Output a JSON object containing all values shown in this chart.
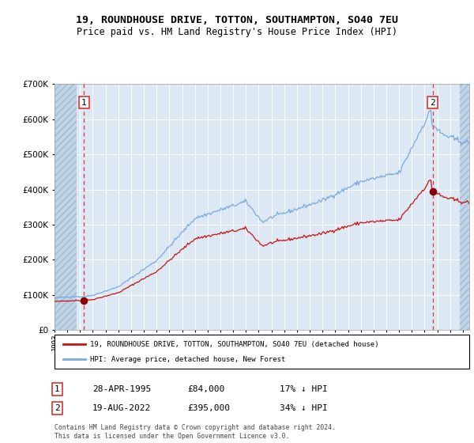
{
  "title1": "19, ROUNDHOUSE DRIVE, TOTTON, SOUTHAMPTON, SO40 7EU",
  "title2": "Price paid vs. HM Land Registry's House Price Index (HPI)",
  "legend1": "19, ROUNDHOUSE DRIVE, TOTTON, SOUTHAMPTON, SO40 7EU (detached house)",
  "legend2": "HPI: Average price, detached house, New Forest",
  "point1_date": "28-APR-1995",
  "point1_price": 84000,
  "point1_label": "17% ↓ HPI",
  "point2_date": "19-AUG-2022",
  "point2_price": 395000,
  "point2_label": "34% ↓ HPI",
  "footer": "Contains HM Land Registry data © Crown copyright and database right 2024.\nThis data is licensed under the Open Government Licence v3.0.",
  "hpi_color": "#7aaadd",
  "property_color": "#cc1111",
  "point_color": "#880000",
  "dashed_line_color": "#dd3333",
  "background_color": "#dce9f5",
  "hatched_color": "#c0d4e8",
  "grid_color": "#ffffff",
  "ylim": [
    0,
    700000
  ],
  "xlim_start": 1993.0,
  "xlim_end": 2025.5,
  "point1_x": 1995.32,
  "point2_x": 2022.63
}
